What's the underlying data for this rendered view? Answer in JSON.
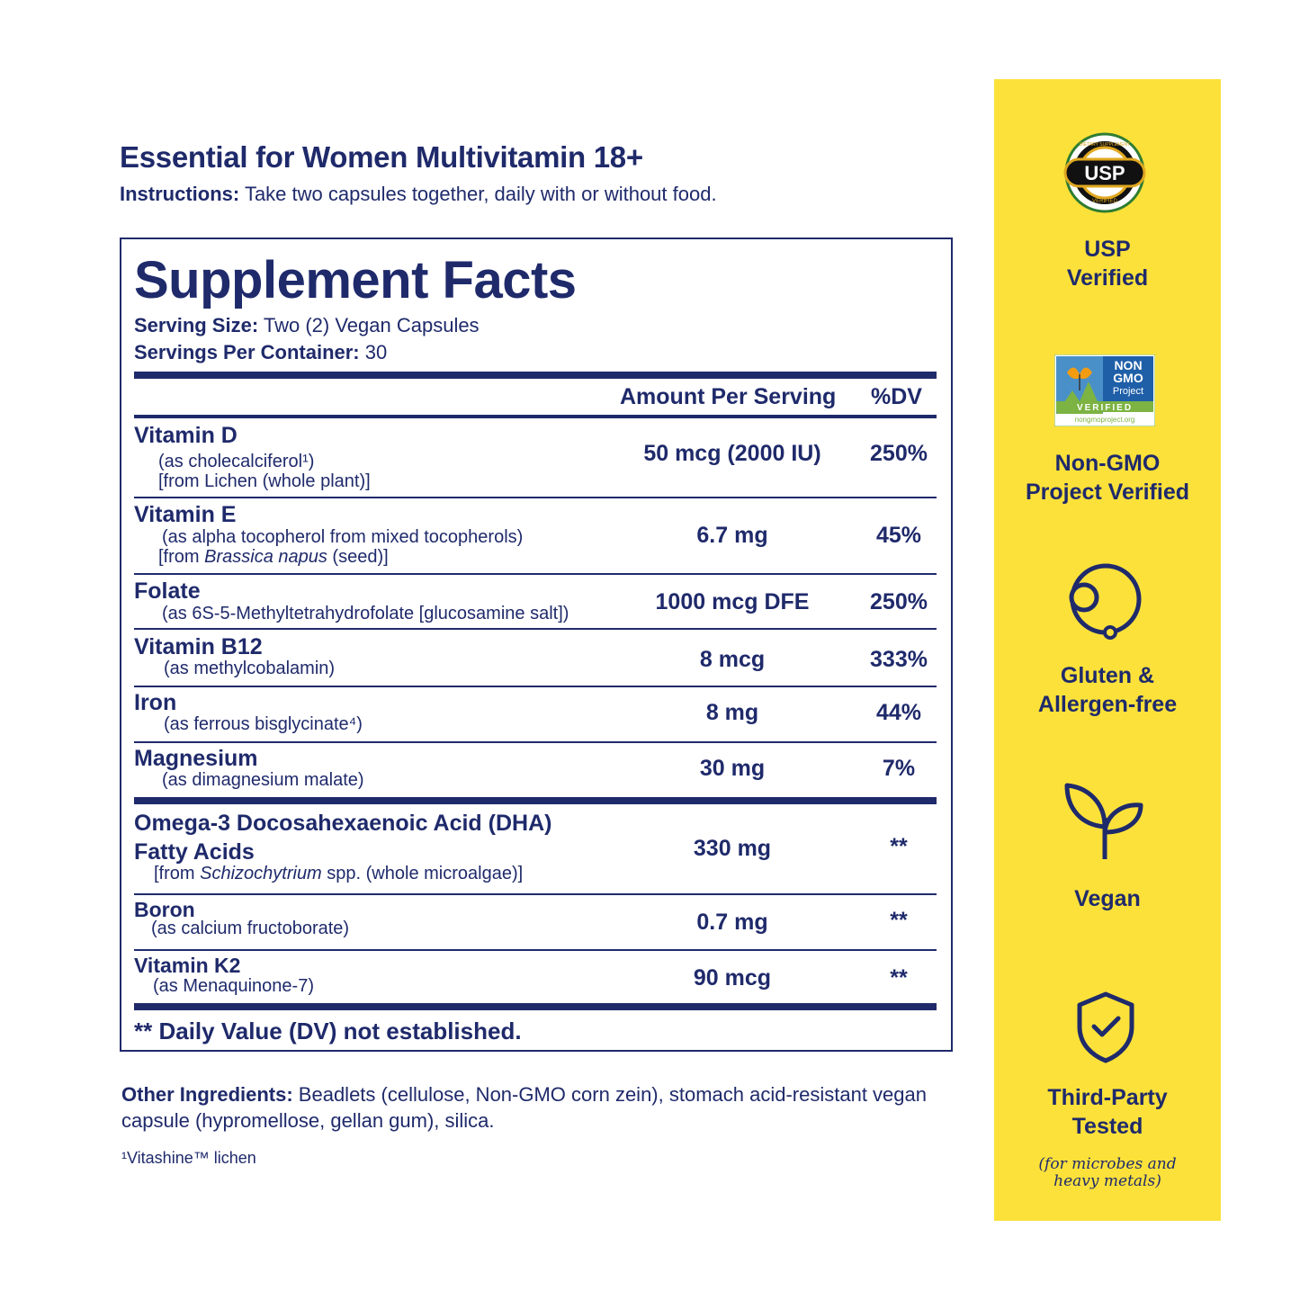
{
  "product": {
    "title": "Essential for Women Multivitamin 18+",
    "instructions_label": "Instructions:",
    "instructions_text": " Take two capsules together, daily with or without food."
  },
  "facts": {
    "heading": "Supplement Facts",
    "serving_size_label": "Serving Size:",
    "serving_size_value": " Two (2) Vegan Capsules",
    "servings_label": "Servings Per Container:",
    "servings_value": " 30",
    "col_amount": "Amount Per Serving",
    "col_dv": "%DV",
    "rows": [
      {
        "name": "Vitamin D",
        "sub1": "(as cholecalciferol¹)",
        "sub2": "[from Lichen (whole plant)]",
        "amount": "50 mcg (2000 IU)",
        "dv": "250%"
      },
      {
        "name": "Vitamin E",
        "sub1": "(as alpha tocopherol from mixed tocopherols)",
        "sub2_pre": "[from ",
        "sub2_italic": "Brassica napus",
        "sub2_post": " (seed)]",
        "amount": "6.7 mg",
        "dv": "45%"
      },
      {
        "name": "Folate",
        "sub1": "(as 6S-5-Methyltetrahydrofolate [glucosamine salt])",
        "amount": "1000 mcg DFE",
        "dv": "250%"
      },
      {
        "name": "Vitamin B12",
        "sub1": "(as methylcobalamin)",
        "amount": "8 mcg",
        "dv": "333%"
      },
      {
        "name": "Iron",
        "sub1": "(as ferrous bisglycinate⁴)",
        "amount": "8 mg",
        "dv": "44%"
      },
      {
        "name": "Magnesium",
        "sub1": "(as dimagnesium malate)",
        "amount": "30 mg",
        "dv": "7%"
      },
      {
        "name": "Omega-3 Docosahexaenoic Acid (DHA)",
        "name2": "Fatty Acids",
        "sub1_pre": "[from ",
        "sub1_italic": "Schizochytrium",
        "sub1_post": " spp. (whole microalgae)]",
        "amount": "330 mg",
        "dv": "**"
      },
      {
        "name": "Boron",
        "sub1": "(as calcium fructoborate)",
        "amount": "0.7 mg",
        "dv": "**"
      },
      {
        "name": "Vitamin K2",
        "sub1": "(as Menaquinone-7)",
        "amount": "90 mcg",
        "dv": "**"
      }
    ],
    "dv_note": "** Daily Value (DV) not established."
  },
  "other_ingredients": {
    "label": "Other Ingredients:",
    "text": " Beadlets (cellulose, Non-GMO corn zein), stomach acid-resistant vegan capsule (hypromellose, gellan gum), silica."
  },
  "footnote": "¹Vitashine™ lichen",
  "badges": {
    "usp": {
      "line1": "USP",
      "line2": "Verified",
      "seal_text": "USP",
      "seal_top": "DIETARY SUPPLEMENT",
      "seal_bottom": "VERIFIED",
      "icon": "usp-seal-icon"
    },
    "nongmo": {
      "line1": "Non-GMO",
      "line2": "Project Verified",
      "logo_l1": "NON",
      "logo_l2": "GMO",
      "logo_l3": "Project",
      "logo_verified": "VERIFIED",
      "logo_url": "nongmoproject.org",
      "icon": "non-gmo-logo-icon"
    },
    "gluten": {
      "line1": "Gluten &",
      "line2": "Allergen-free",
      "icon": "gluten-free-icon"
    },
    "vegan": {
      "line1": "Vegan",
      "icon": "sprout-icon"
    },
    "tested": {
      "line1": "Third-Party",
      "line2": "Tested",
      "note1": "(for microbes and",
      "note2": "heavy metals)",
      "icon": "shield-check-icon"
    }
  },
  "colors": {
    "navy": "#1f2a6b",
    "yellow": "#fce13a"
  }
}
